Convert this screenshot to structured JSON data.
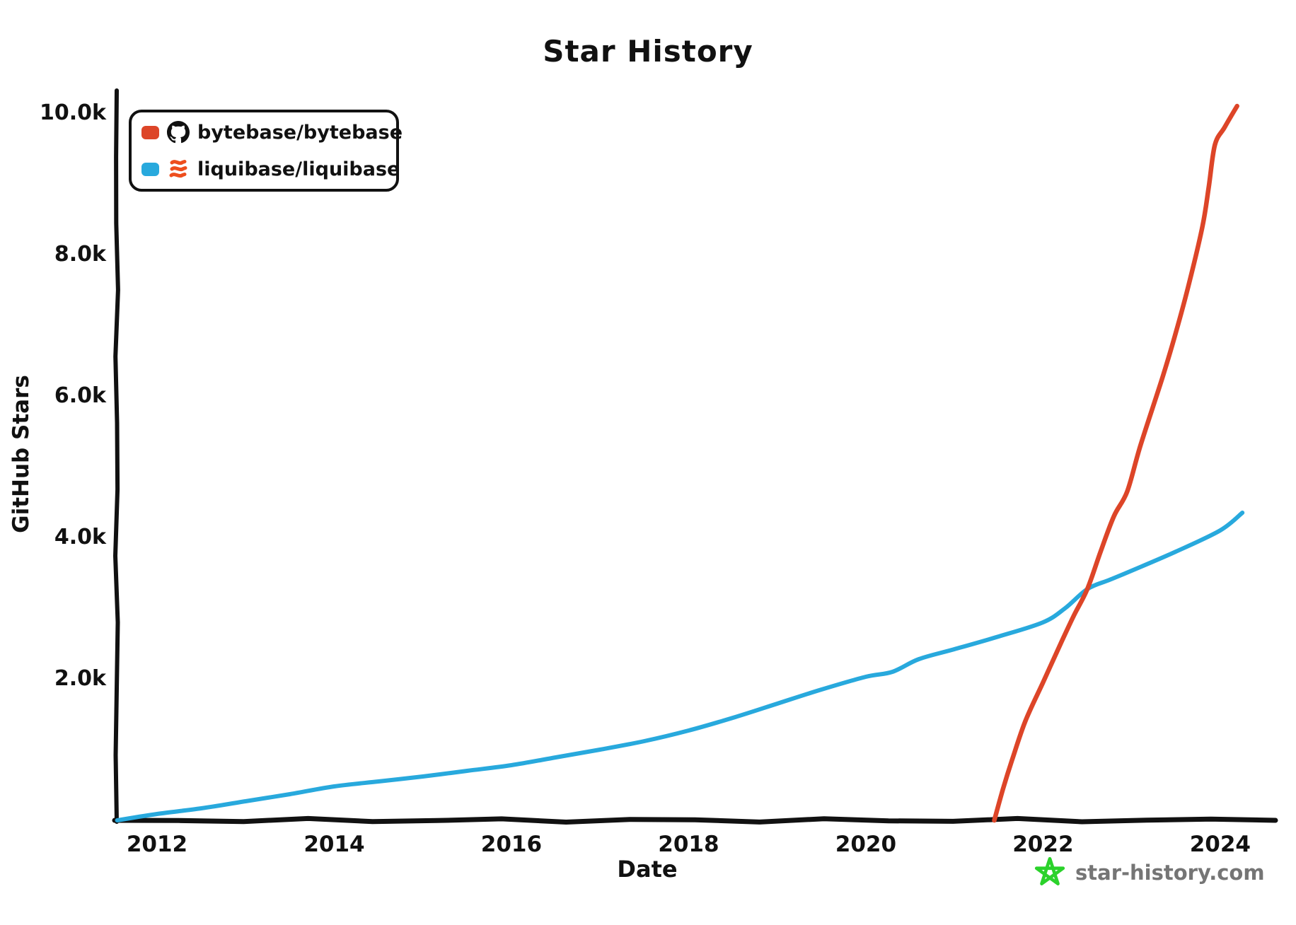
{
  "chart": {
    "title": "Star History",
    "x_axis_label": "Date",
    "y_axis_label": "GitHub Stars",
    "legend": {
      "items": [
        {
          "label": "bytebase/bytebase",
          "color": "#dd4528",
          "icon": "github-octocat-icon"
        },
        {
          "label": "liquibase/liquibase",
          "color": "#28a9dd",
          "icon": "liquibase-logo-icon"
        }
      ]
    },
    "watermark": {
      "text": "star-history.com",
      "star_color": "#2bd22b",
      "text_color": "#757575"
    },
    "colors": {
      "axis": "#111111",
      "background": "#ffffff",
      "liquibase_logo": "#ee4e1d"
    }
  },
  "chart_data": {
    "type": "line",
    "title": "Star History",
    "xlabel": "Date",
    "ylabel": "GitHub Stars",
    "xlim": [
      2011.545,
      2024.6
    ],
    "ylim": [
      0,
      10270
    ],
    "grid": false,
    "legend_position": "top-left",
    "x_ticks": [
      {
        "value": 2012,
        "label": "2012"
      },
      {
        "value": 2014,
        "label": "2014"
      },
      {
        "value": 2016,
        "label": "2016"
      },
      {
        "value": 2018,
        "label": "2018"
      },
      {
        "value": 2020,
        "label": "2020"
      },
      {
        "value": 2022,
        "label": "2022"
      },
      {
        "value": 2024,
        "label": "2024"
      }
    ],
    "y_ticks": [
      {
        "value": 2000,
        "label": "2.0k"
      },
      {
        "value": 4000,
        "label": "4.0k"
      },
      {
        "value": 6000,
        "label": "6.0k"
      },
      {
        "value": 8000,
        "label": "8.0k"
      },
      {
        "value": 10000,
        "label": "10.0k"
      }
    ],
    "series": [
      {
        "name": "bytebase/bytebase",
        "color": "#dd4528",
        "x": [
          2021.45,
          2021.55,
          2021.65,
          2021.8,
          2022.0,
          2022.2,
          2022.35,
          2022.5,
          2022.65,
          2022.8,
          2022.95,
          2023.1,
          2023.35,
          2023.5,
          2023.65,
          2023.8,
          2023.87,
          2023.94,
          2024.05,
          2024.19
        ],
        "y": [
          0,
          450,
          850,
          1400,
          1950,
          2500,
          2900,
          3270,
          3800,
          4300,
          4650,
          5300,
          6270,
          6900,
          7600,
          8400,
          8950,
          9550,
          9800,
          10100
        ]
      },
      {
        "name": "liquibase/liquibase",
        "color": "#28a9dd",
        "x": [
          2011.55,
          2012,
          2012.5,
          2013,
          2013.5,
          2014,
          2014.5,
          2015,
          2015.5,
          2016,
          2016.5,
          2017,
          2017.5,
          2018,
          2018.5,
          2019,
          2019.5,
          2020,
          2020.3,
          2020.6,
          2021,
          2021.5,
          2022,
          2022.25,
          2022.5,
          2022.75,
          2023,
          2023.5,
          2024,
          2024.25
        ],
        "y": [
          0,
          90,
          170,
          270,
          370,
          480,
          550,
          620,
          700,
          780,
          890,
          1000,
          1120,
          1270,
          1450,
          1650,
          1850,
          2030,
          2100,
          2280,
          2420,
          2600,
          2800,
          3000,
          3270,
          3400,
          3530,
          3800,
          4100,
          4350
        ]
      }
    ]
  }
}
